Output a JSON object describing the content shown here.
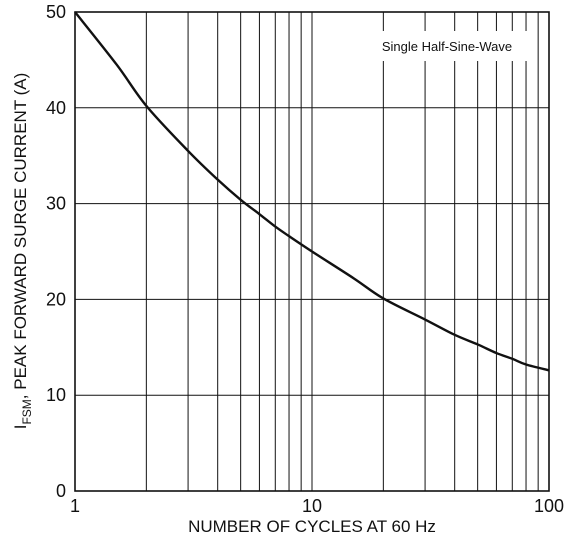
{
  "chart_data": {
    "type": "line",
    "xscale": "log",
    "xlim": [
      1,
      100
    ],
    "ylim": [
      0,
      50
    ],
    "grid": true,
    "xlabel": "NUMBER OF CYCLES AT 60 Hz",
    "ylabel": {
      "main": "I",
      "sub": "FSM",
      "rest": ", PEAK FORWARD SURGE CURRENT (A)"
    },
    "annotation": "Single Half-Sine-Wave",
    "x_ticks": [
      {
        "value": 1,
        "label": "1"
      },
      {
        "value": 10,
        "label": "10"
      },
      {
        "value": 100,
        "label": "100"
      }
    ],
    "y_ticks": [
      {
        "value": 0,
        "label": "0"
      },
      {
        "value": 10,
        "label": "10"
      },
      {
        "value": 20,
        "label": "20"
      },
      {
        "value": 30,
        "label": "30"
      },
      {
        "value": 40,
        "label": "40"
      },
      {
        "value": 50,
        "label": "50"
      }
    ],
    "series": [
      {
        "color": "#111111",
        "x": [
          1,
          1.5,
          2,
          3,
          4,
          5,
          6,
          7,
          8,
          10,
          15,
          20,
          30,
          40,
          50,
          60,
          70,
          80,
          100
        ],
        "y": [
          50,
          44.5,
          40.2,
          35.5,
          32.5,
          30.4,
          28.9,
          27.6,
          26.6,
          25.0,
          22.2,
          20.1,
          17.9,
          16.3,
          15.3,
          14.4,
          13.8,
          13.2,
          12.6
        ]
      }
    ]
  }
}
